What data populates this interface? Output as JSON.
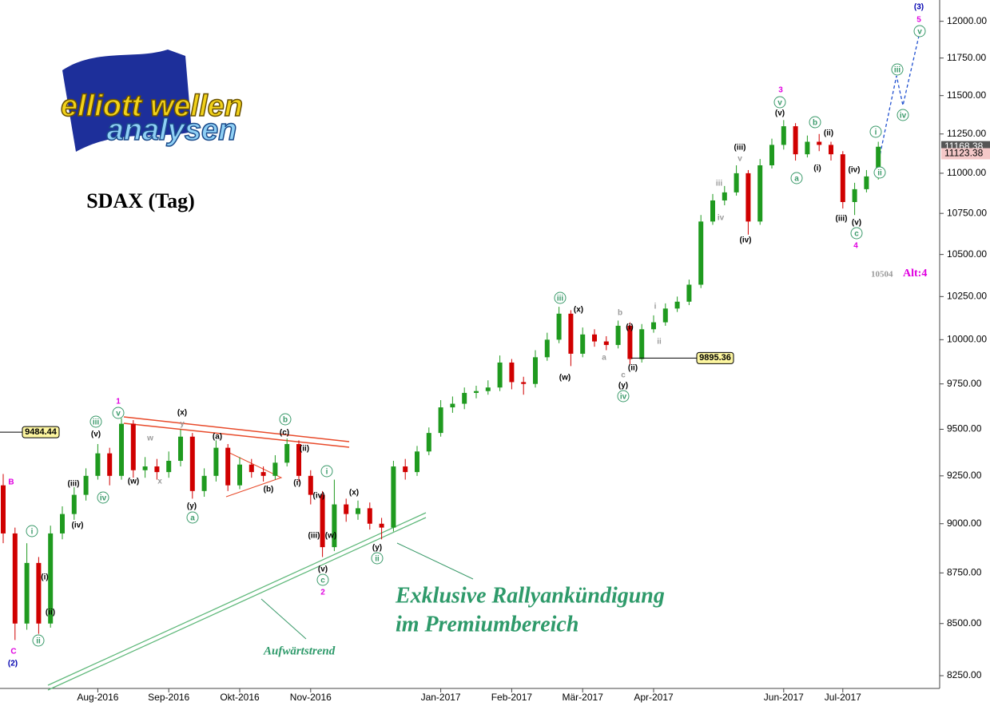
{
  "chart_data": {
    "type": "candlestick",
    "title": "SDAX (Tag)",
    "log_scale": true,
    "ylim": [
      8108,
      12147
    ],
    "yticks": [
      {
        "value": 8250,
        "label": "8250.00"
      },
      {
        "value": 8500,
        "label": "8500.00"
      },
      {
        "value": 8750,
        "label": "8750.00"
      },
      {
        "value": 9000,
        "label": "9000.00"
      },
      {
        "value": 9250,
        "label": "9250.00"
      },
      {
        "value": 9500,
        "label": "9500.00"
      },
      {
        "value": 9750,
        "label": "9750.00"
      },
      {
        "value": 10000,
        "label": "10000.00"
      },
      {
        "value": 10250,
        "label": "10250.00"
      },
      {
        "value": 10500,
        "label": "10500.00"
      },
      {
        "value": 10750,
        "label": "10750.00"
      },
      {
        "value": 11000,
        "label": "11000.00"
      },
      {
        "value": 11250,
        "label": "11250.00"
      },
      {
        "value": 11500,
        "label": "11500.00"
      },
      {
        "value": 11750,
        "label": "11750.00"
      },
      {
        "value": 12000,
        "label": "12000.00"
      }
    ],
    "categories": [
      null,
      null,
      null,
      null,
      null,
      null,
      null,
      null,
      "Aug-2016",
      null,
      null,
      null,
      null,
      null,
      "Sep-2016",
      null,
      null,
      null,
      null,
      null,
      "Okt-2016",
      null,
      null,
      null,
      null,
      null,
      "Nov-2016",
      null,
      null,
      null,
      null,
      null,
      null,
      null,
      null,
      null,
      null,
      "Jan-2017",
      null,
      null,
      null,
      null,
      null,
      "Feb-2017",
      null,
      null,
      null,
      null,
      null,
      "Mär-2017",
      null,
      null,
      null,
      null,
      null,
      "Apr-2017",
      null,
      null,
      null,
      null,
      null,
      null,
      null,
      null,
      null,
      null,
      "Jun-2017",
      null,
      null,
      null,
      null,
      "Jul-2017",
      null,
      null,
      null
    ],
    "open": [
      9200,
      8950,
      8500,
      8800,
      8500,
      8950,
      9050,
      9150,
      9250,
      9370,
      9250,
      9530,
      9280,
      9300,
      9270,
      9330,
      9460,
      9170,
      9250,
      9400,
      9200,
      9310,
      9270,
      9250,
      9320,
      9420,
      9250,
      9150,
      8880,
      9100,
      9050,
      9080,
      9000,
      8980,
      9300,
      9270,
      9380,
      9480,
      9620,
      9640,
      9700,
      9710,
      9730,
      9870,
      9760,
      9750,
      9900,
      10000,
      10150,
      9920,
      10030,
      9990,
      9970,
      10080,
      9890,
      10060,
      10100,
      10180,
      10220,
      10320,
      10700,
      10830,
      10880,
      11000,
      10700,
      11050,
      11180,
      11300,
      11120,
      11200,
      11180,
      11120,
      10820,
      10900,
      10980
    ],
    "high": [
      9260,
      8980,
      8900,
      8830,
      8990,
      9090,
      9190,
      9290,
      9420,
      9400,
      9560,
      9550,
      9350,
      9340,
      9380,
      9500,
      9480,
      9290,
      9440,
      9420,
      9350,
      9340,
      9300,
      9360,
      9450,
      9440,
      9280,
      9170,
      9230,
      9130,
      9120,
      9110,
      9030,
      9330,
      9340,
      9410,
      9510,
      9660,
      9680,
      9730,
      9740,
      9770,
      9910,
      9890,
      9790,
      9940,
      10040,
      10190,
      10170,
      10070,
      10060,
      10020,
      10110,
      10100,
      10090,
      10140,
      10210,
      10250,
      10350,
      10740,
      10870,
      10920,
      11050,
      11020,
      11090,
      11220,
      11340,
      11320,
      11240,
      11250,
      11200,
      11140,
      10940,
      11020,
      11200
    ],
    "low": [
      8900,
      8420,
      8470,
      8450,
      8480,
      8920,
      9020,
      9120,
      9230,
      9200,
      9230,
      9240,
      9240,
      9230,
      9240,
      9300,
      9130,
      9140,
      9220,
      9170,
      9180,
      9240,
      9220,
      9230,
      9300,
      9220,
      9100,
      8830,
      8860,
      9010,
      9020,
      8970,
      8920,
      8960,
      9230,
      9250,
      9360,
      9460,
      9590,
      9610,
      9670,
      9690,
      9710,
      9720,
      9690,
      9730,
      9880,
      9980,
      9850,
      9900,
      9960,
      9940,
      9950,
      9860,
      9870,
      10040,
      10080,
      10160,
      10200,
      10300,
      10680,
      10800,
      10860,
      10620,
      10680,
      11030,
      11150,
      11080,
      11100,
      11140,
      11080,
      10780,
      10740,
      10880,
      10960
    ],
    "close": [
      8950,
      8500,
      8800,
      8500,
      8950,
      9050,
      9150,
      9250,
      9370,
      9250,
      9530,
      9280,
      9300,
      9270,
      9330,
      9460,
      9170,
      9250,
      9400,
      9200,
      9310,
      9270,
      9250,
      9320,
      9420,
      9250,
      9150,
      8880,
      9100,
      9050,
      9080,
      9000,
      8980,
      9300,
      9270,
      9380,
      9480,
      9620,
      9640,
      9700,
      9710,
      9730,
      9870,
      9760,
      9750,
      9900,
      10000,
      10150,
      9920,
      10030,
      9990,
      9970,
      10080,
      9890,
      10060,
      10100,
      10180,
      10220,
      10320,
      10700,
      10830,
      10880,
      11000,
      10700,
      11050,
      11180,
      11300,
      11120,
      11200,
      11180,
      11120,
      10820,
      10900,
      10980,
      11168
    ],
    "up_color": "#1f9a1f",
    "down_color": "#d00000",
    "price_levels": [
      9484.44,
      9895.36
    ],
    "last_prices": [
      11168.38,
      11123.38
    ],
    "wave_labels": [
      {
        "color": "#e000e0",
        "texts": [
          "B",
          "C",
          "1",
          "2",
          "3",
          "4",
          "5"
        ]
      },
      {
        "color": "#0000b0",
        "texts": [
          "(2)",
          "(3)"
        ]
      },
      {
        "color": "#000000",
        "texts": [
          "(i)",
          "(ii)",
          "(iii)",
          "(iv)",
          "(v)",
          "(w)",
          "(x)",
          "(y)",
          "(a)",
          "(b)",
          "(c)",
          "(ii)",
          "(i)",
          "(iv)",
          "(iii)",
          "(w)",
          "(v)",
          "(x)",
          "(y)",
          "(x)",
          "(w)",
          "(i)",
          "(ii)",
          "(y)",
          "(iii)",
          "(iv)",
          "(v)",
          "(ii)",
          "(i)",
          "(iv)",
          "(iii)",
          "(v)"
        ]
      },
      {
        "color": "#3a9a6a",
        "circled": true,
        "texts": [
          "i",
          "ii",
          "iii",
          "iv",
          "v",
          "a",
          "b",
          "i",
          "c",
          "ii",
          "iii",
          "iv",
          "v",
          "b",
          "a",
          "i",
          "ii",
          "iii",
          "iv",
          "v",
          "c"
        ]
      },
      {
        "color": "#9a9a9a",
        "texts": [
          "w",
          "x",
          "y",
          "a",
          "b",
          "c",
          "i",
          "ii",
          "iii",
          "iv",
          "v"
        ]
      }
    ],
    "promo": [
      "Exklusive Rallyankündigung",
      "im Premiumbereich"
    ],
    "trend_label": "Aufwärtstrend",
    "alt_level": "10504",
    "alt_label": "Alt:4",
    "logo": [
      "elliott wellen",
      "analysen"
    ]
  }
}
